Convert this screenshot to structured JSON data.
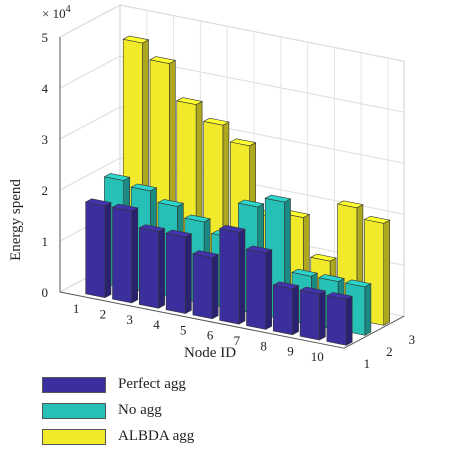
{
  "chart_data": {
    "type": "bar",
    "title": "",
    "xlabel": "Node ID",
    "ylabel": "",
    "zlabel": "Energy spend",
    "scale_exponent": "× 10",
    "scale_power": "4",
    "x": [
      "1",
      "2",
      "3",
      "4",
      "5",
      "6",
      "7",
      "8",
      "9",
      "10"
    ],
    "y_ticks": [
      "1",
      "2",
      "3"
    ],
    "z_ticks": [
      "0",
      "1",
      "2",
      "3",
      "4",
      "5"
    ],
    "zlim": [
      0,
      5
    ],
    "grid": true,
    "legend_position": "bottom-left",
    "series": [
      {
        "name": "Perfect agg",
        "color": "#3a2f9c",
        "values": [
          18000,
          18000,
          15000,
          15000,
          12000,
          18000,
          15000,
          9000,
          9000,
          9000
        ]
      },
      {
        "name": "No agg",
        "color": "#26c0b6",
        "values": [
          21000,
          20000,
          18000,
          16000,
          14000,
          21000,
          23000,
          9500,
          9500,
          9500
        ]
      },
      {
        "name": "ALBDA agg",
        "color": "#f1ea2a",
        "values": [
          46000,
          43000,
          36000,
          33000,
          30000,
          17000,
          18000,
          10500,
          22000,
          20000
        ]
      }
    ]
  }
}
